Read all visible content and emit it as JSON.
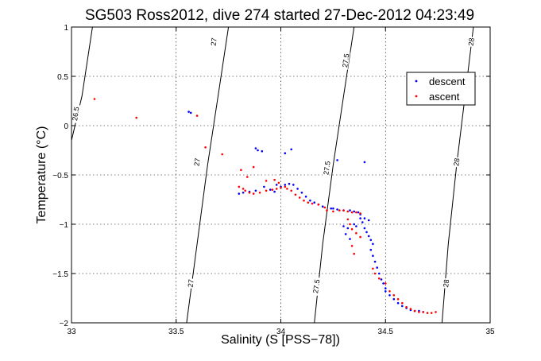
{
  "chart_data": {
    "type": "scatter",
    "title": "SG503 Ross2012, dive 274 started 27-Dec-2012 04:23:49",
    "xlabel": "Salinity (S [PSS−78])",
    "ylabel": "Temperature (°C)",
    "xlim": [
      33,
      35
    ],
    "ylim": [
      -2,
      1
    ],
    "grid": true,
    "legend_position": "top-right",
    "x_ticks": [
      33,
      33.5,
      34,
      34.5,
      35
    ],
    "x_tick_labels": [
      "33",
      "33.5",
      "34",
      "34.5",
      "35"
    ],
    "y_ticks": [
      -2,
      -1.5,
      -1,
      -0.5,
      0,
      0.5,
      1
    ],
    "y_tick_labels": [
      "−2",
      "−1.5",
      "−1",
      "−0.5",
      "0",
      "0.5",
      "1"
    ],
    "colors": {
      "descent": "#0000ff",
      "ascent": "#ff0000",
      "isopycnal": "#000000"
    },
    "isopycnals": [
      {
        "sigma": 26.5,
        "points": [
          [
            33.0,
            -0.15
          ],
          [
            33.05,
            0.3
          ],
          [
            33.1,
            1.0
          ]
        ],
        "labels": [
          {
            "text": "26.5",
            "x": 33.02,
            "y": 0.12
          }
        ]
      },
      {
        "sigma": 27,
        "points": [
          [
            33.55,
            -2.0
          ],
          [
            33.6,
            -1.2
          ],
          [
            33.65,
            -0.4
          ],
          [
            33.7,
            0.3
          ],
          [
            33.75,
            1.0
          ]
        ],
        "labels": [
          {
            "text": "27",
            "x": 33.57,
            "y": -1.6
          },
          {
            "text": "27",
            "x": 33.6,
            "y": -0.37
          },
          {
            "text": "27",
            "x": 33.68,
            "y": 0.85
          }
        ]
      },
      {
        "sigma": 27.5,
        "points": [
          [
            34.16,
            -2.0
          ],
          [
            34.2,
            -1.2
          ],
          [
            34.25,
            -0.4
          ],
          [
            34.3,
            0.3
          ],
          [
            34.35,
            1.0
          ]
        ],
        "labels": [
          {
            "text": "27.5",
            "x": 34.17,
            "y": -1.63
          },
          {
            "text": "27.5",
            "x": 34.22,
            "y": -0.43
          },
          {
            "text": "27.5",
            "x": 34.31,
            "y": 0.66
          }
        ]
      },
      {
        "sigma": 28,
        "points": [
          [
            34.77,
            -2.0
          ],
          [
            34.8,
            -1.2
          ],
          [
            34.84,
            -0.4
          ],
          [
            34.88,
            0.3
          ],
          [
            34.92,
            1.0
          ]
        ],
        "labels": [
          {
            "text": "28",
            "x": 34.79,
            "y": -1.6
          },
          {
            "text": "28",
            "x": 34.84,
            "y": -0.37
          },
          {
            "text": "28",
            "x": 34.91,
            "y": 0.85
          }
        ]
      }
    ],
    "series": [
      {
        "name": "descent",
        "marker": "dot",
        "color": "#0000ff",
        "points": [
          [
            33.56,
            0.14
          ],
          [
            33.57,
            0.13
          ],
          [
            33.88,
            -0.23
          ],
          [
            33.89,
            -0.25
          ],
          [
            33.91,
            -0.26
          ],
          [
            34.02,
            -0.28
          ],
          [
            34.05,
            -0.24
          ],
          [
            34.27,
            -0.35
          ],
          [
            34.4,
            -0.37
          ],
          [
            33.98,
            -0.6
          ],
          [
            34.0,
            -0.62
          ],
          [
            34.02,
            -0.6
          ],
          [
            34.04,
            -0.59
          ],
          [
            34.06,
            -0.6
          ],
          [
            34.08,
            -0.64
          ],
          [
            34.1,
            -0.68
          ],
          [
            34.12,
            -0.72
          ],
          [
            34.14,
            -0.76
          ],
          [
            34.16,
            -0.78
          ],
          [
            34.18,
            -0.8
          ],
          [
            34.2,
            -0.82
          ],
          [
            34.24,
            -0.84
          ],
          [
            34.27,
            -0.85
          ],
          [
            34.3,
            -0.86
          ],
          [
            34.33,
            -0.86
          ],
          [
            34.35,
            -0.87
          ],
          [
            34.37,
            -0.88
          ],
          [
            34.38,
            -0.9
          ],
          [
            34.38,
            -0.94
          ],
          [
            34.39,
            -0.98
          ],
          [
            34.4,
            -1.04
          ],
          [
            34.41,
            -1.08
          ],
          [
            34.42,
            -1.12
          ],
          [
            34.43,
            -1.16
          ],
          [
            34.44,
            -1.2
          ],
          [
            34.43,
            -1.26
          ],
          [
            34.44,
            -1.32
          ],
          [
            34.45,
            -1.38
          ],
          [
            34.46,
            -1.44
          ],
          [
            34.47,
            -1.5
          ],
          [
            34.48,
            -1.56
          ],
          [
            34.49,
            -1.6
          ],
          [
            34.5,
            -1.65
          ],
          [
            34.5,
            -1.68
          ],
          [
            34.52,
            -1.72
          ],
          [
            34.54,
            -1.76
          ],
          [
            34.56,
            -1.8
          ],
          [
            34.58,
            -1.83
          ],
          [
            34.6,
            -1.85
          ],
          [
            34.62,
            -1.87
          ],
          [
            34.64,
            -1.88
          ],
          [
            34.66,
            -1.88
          ],
          [
            34.68,
            -1.89
          ],
          [
            33.92,
            -0.62
          ],
          [
            33.95,
            -0.65
          ],
          [
            33.97,
            -0.67
          ],
          [
            33.88,
            -0.66
          ],
          [
            33.85,
            -0.67
          ],
          [
            33.82,
            -0.68
          ],
          [
            33.8,
            -0.69
          ],
          [
            34.25,
            -0.84
          ],
          [
            34.3,
            -1.02
          ],
          [
            34.32,
            -1.04
          ],
          [
            34.35,
            -1.0
          ],
          [
            34.36,
            -1.02
          ],
          [
            34.31,
            -1.1
          ],
          [
            34.33,
            -1.15
          ],
          [
            34.4,
            -0.94
          ],
          [
            34.42,
            -0.96
          ]
        ]
      },
      {
        "name": "ascent",
        "marker": "dot",
        "color": "#ff0000",
        "points": [
          [
            33.11,
            0.27
          ],
          [
            33.31,
            0.08
          ],
          [
            33.6,
            0.1
          ],
          [
            33.64,
            -0.22
          ],
          [
            33.72,
            -0.29
          ],
          [
            33.81,
            -0.45
          ],
          [
            33.84,
            -0.52
          ],
          [
            33.87,
            -0.42
          ],
          [
            33.93,
            -0.56
          ],
          [
            33.97,
            -0.55
          ],
          [
            33.99,
            -0.58
          ],
          [
            33.8,
            -0.62
          ],
          [
            33.82,
            -0.64
          ],
          [
            33.83,
            -0.66
          ],
          [
            33.85,
            -0.68
          ],
          [
            33.87,
            -0.69
          ],
          [
            33.9,
            -0.68
          ],
          [
            33.93,
            -0.66
          ],
          [
            33.96,
            -0.65
          ],
          [
            33.98,
            -0.64
          ],
          [
            34.0,
            -0.63
          ],
          [
            34.02,
            -0.62
          ],
          [
            34.03,
            -0.64
          ],
          [
            34.05,
            -0.66
          ],
          [
            34.07,
            -0.7
          ],
          [
            34.09,
            -0.73
          ],
          [
            34.11,
            -0.76
          ],
          [
            34.13,
            -0.78
          ],
          [
            34.15,
            -0.79
          ],
          [
            34.18,
            -0.8
          ],
          [
            34.21,
            -0.83
          ],
          [
            34.22,
            -0.86
          ],
          [
            34.25,
            -0.87
          ],
          [
            34.28,
            -0.86
          ],
          [
            34.3,
            -0.86
          ],
          [
            34.32,
            -0.87
          ],
          [
            34.34,
            -0.88
          ],
          [
            34.36,
            -0.88
          ],
          [
            34.38,
            -0.89
          ],
          [
            34.32,
            -0.95
          ],
          [
            34.33,
            -1.0
          ],
          [
            34.34,
            -1.05
          ],
          [
            34.36,
            -1.09
          ],
          [
            34.38,
            -1.13
          ],
          [
            34.34,
            -1.22
          ],
          [
            34.35,
            -1.3
          ],
          [
            34.44,
            -1.45
          ],
          [
            34.45,
            -1.5
          ],
          [
            34.47,
            -1.55
          ],
          [
            34.5,
            -1.6
          ],
          [
            34.52,
            -1.68
          ],
          [
            34.54,
            -1.72
          ],
          [
            34.56,
            -1.76
          ],
          [
            34.58,
            -1.8
          ],
          [
            34.6,
            -1.84
          ],
          [
            34.62,
            -1.86
          ],
          [
            34.64,
            -1.88
          ],
          [
            34.66,
            -1.89
          ],
          [
            34.68,
            -1.89
          ],
          [
            34.7,
            -1.9
          ],
          [
            34.72,
            -1.9
          ],
          [
            34.74,
            -1.89
          ]
        ]
      }
    ]
  }
}
